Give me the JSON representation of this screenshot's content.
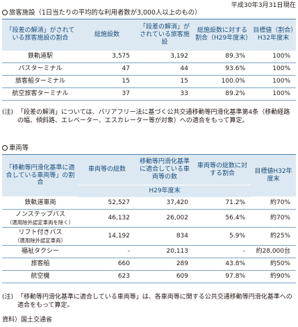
{
  "date": "平成30年3月31日現在",
  "section1": {
    "title": "旅客施設（1日当たりの平均的な利用者数が3,000人以上のもの）",
    "headers": [
      "「段差の解消」がされている旅客施設の割合",
      "総施設数",
      "「段差の解消」がされている旅客施設",
      "総施設数に対する割合（H29年度末）",
      "目標値（割合）H32年度末"
    ],
    "rows": [
      [
        "鉄軌道駅",
        "3,575",
        "3,192",
        "89.3%",
        "100%"
      ],
      [
        "バスターミナル",
        "47",
        "44",
        "93.6%",
        "100%"
      ],
      [
        "旅客船ターミナル",
        "15",
        "15",
        "100.0%",
        "100%"
      ],
      [
        "航空旅客ターミナル",
        "37",
        "33",
        "89.2%",
        "100%"
      ]
    ],
    "note_key": "(注)",
    "note": "「段差の解消」については、バリアフリー法に基づく公共交通移動等円滑化基準第4条（移動経路の幅、傾斜路、エレベーター、エスカレーター等が対象）への適合をもって算定。"
  },
  "section2": {
    "title": "車両等",
    "headers": [
      "「移動等円滑化基準に適合している車両等」の割合",
      "車両等の総数",
      "移動等円滑化基準に適合している車両等の数",
      "車両等の総数に対する割合",
      "目標値H32年度末"
    ],
    "subheader": "H29年度末",
    "rows": [
      [
        "鉄軌道車両",
        "",
        "52,527",
        "37,420",
        "71.2%",
        "約70%"
      ],
      [
        "ノンステップバス",
        "（適用除外認定車両を除く）",
        "46,132",
        "26,002",
        "56.4%",
        "約70%"
      ],
      [
        "リフト付きバス",
        "（適用除外認定車両）",
        "14,192",
        "834",
        "5.9%",
        "約25%"
      ],
      [
        "福祉タクシー",
        "",
        "-",
        "20,113",
        "-",
        "約28,000台"
      ],
      [
        "旅客船",
        "",
        "660",
        "289",
        "43.8%",
        "約50%"
      ],
      [
        "航空機",
        "",
        "623",
        "609",
        "97.8%",
        "約90%"
      ]
    ],
    "note_key": "(注)",
    "note": "「移動等円滑化基準に適合している車両等」は、各車両等に関する公共交通移動等円滑化基準への適合をもって算定。"
  },
  "source": "資料）国土交通省"
}
